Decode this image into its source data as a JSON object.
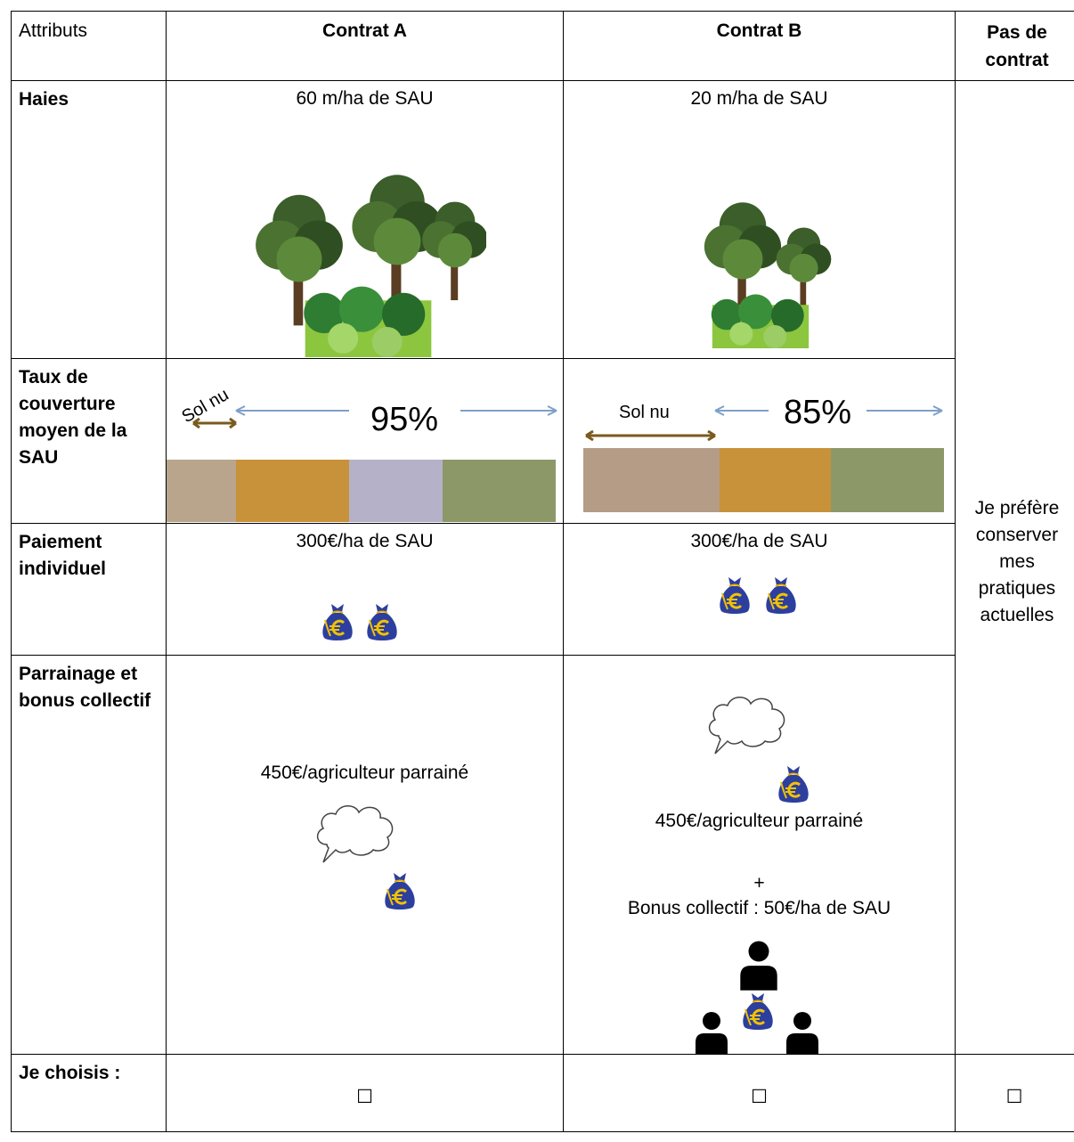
{
  "header": {
    "cells": [
      "Attributs",
      "Contrat A",
      "Contrat B",
      "Pas de contrat"
    ]
  },
  "rows": [
    {
      "label": "Haies",
      "contrat_a": [
        "60 m/ha de SAU"
      ],
      "contrat_b": [
        "20 m/ha de SAU"
      ]
    },
    {
      "label": "Taux de couverture moyen de la SAU",
      "contrat_a": [
        "Sol nu",
        "95%"
      ],
      "contrat_b": [
        "Sol nu",
        "85%"
      ]
    },
    {
      "label": "Paiement individuel",
      "contrat_a": [
        "300€/ha de SAU"
      ],
      "contrat_b": [
        "300€/ha de SAU"
      ]
    },
    {
      "label": "Parrainage et bonus collectif",
      "contrat_a": [
        "450€/agriculteur parrainé"
      ],
      "contrat_b": [
        "450€/agriculteur parrainé",
        "+",
        "Bonus collectif : 50€/ha de SAU"
      ]
    },
    {
      "label": "Je choisis :",
      "contrat_a": [
        "☐"
      ],
      "contrat_b": [
        "☐"
      ],
      "pas_de_contrat": [
        "☐"
      ]
    }
  ],
  "pas_de_contrat_text": "Je préfère conserver mes pratiques actuelles"
}
